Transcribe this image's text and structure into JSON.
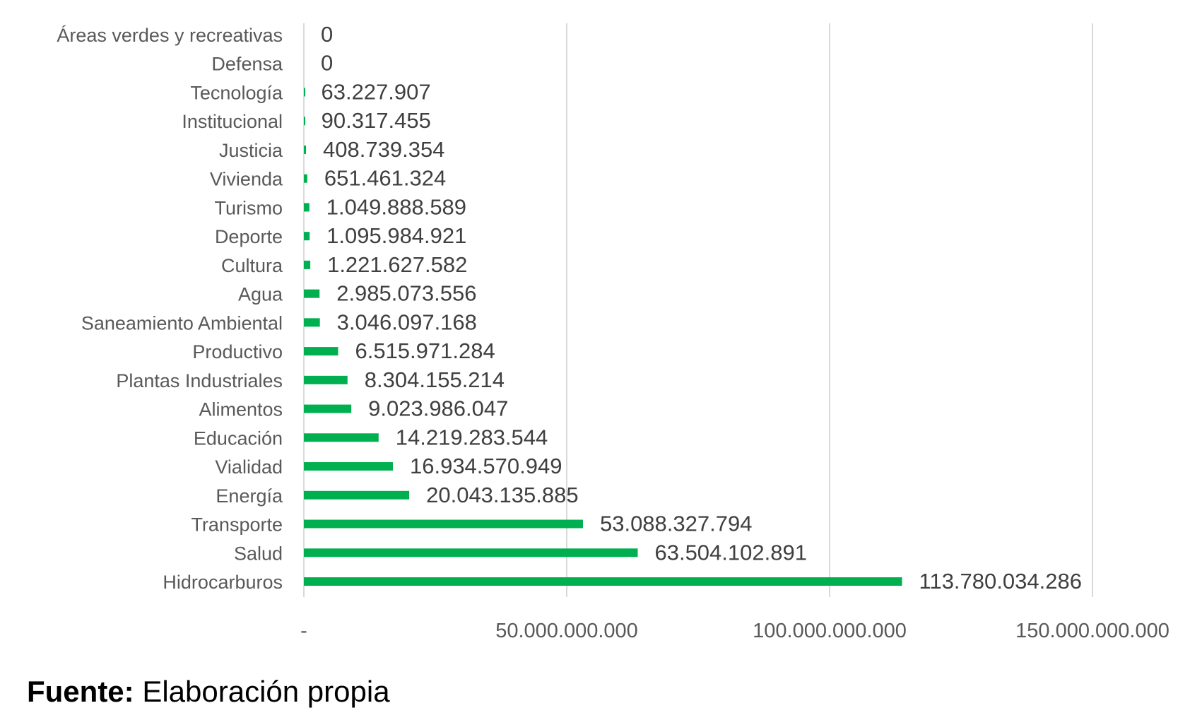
{
  "chart_data": {
    "type": "bar",
    "orientation": "horizontal",
    "categories": [
      "Áreas verdes y recreativas",
      "Defensa",
      "Tecnología",
      "Institucional",
      "Justicia",
      "Vivienda",
      "Turismo",
      "Deporte",
      "Cultura",
      "Agua",
      "Saneamiento Ambiental",
      "Productivo",
      "Plantas Industriales",
      "Alimentos",
      "Educación",
      "Vialidad",
      "Energía",
      "Transporte",
      "Salud",
      "Hidrocarburos"
    ],
    "values": [
      0,
      0,
      63227907,
      90317455,
      408739354,
      651461324,
      1049888589,
      1095984921,
      1221627582,
      2985073556,
      3046097168,
      6515971284,
      8304155214,
      9023986047,
      14219283544,
      16934570949,
      20043135885,
      53088327794,
      63504102891,
      113780034286
    ],
    "labels": [
      "0",
      "0",
      "63.227.907",
      "90.317.455",
      "408.739.354",
      "651.461.324",
      "1.049.888.589",
      "1.095.984.921",
      "1.221.627.582",
      "2.985.073.556",
      "3.046.097.168",
      "6.515.971.284",
      "8.304.155.214",
      "9.023.986.047",
      "14.219.283.544",
      "16.934.570.949",
      "20.043.135.885",
      "53.088.327.794",
      "63.504.102.891",
      "113.780.034.286"
    ],
    "xlim": [
      0,
      150000000000
    ],
    "xticks": [
      0,
      50000000000,
      100000000000,
      150000000000
    ],
    "xtick_labels": [
      "-",
      "50.000.000.000",
      "100.000.000.000",
      "150.000.000.000"
    ],
    "grid": true,
    "bar_color": "#00B050",
    "title": "",
    "xlabel": "",
    "ylabel": ""
  },
  "source": {
    "label": "Fuente:",
    "text": " Elaboración propia"
  }
}
